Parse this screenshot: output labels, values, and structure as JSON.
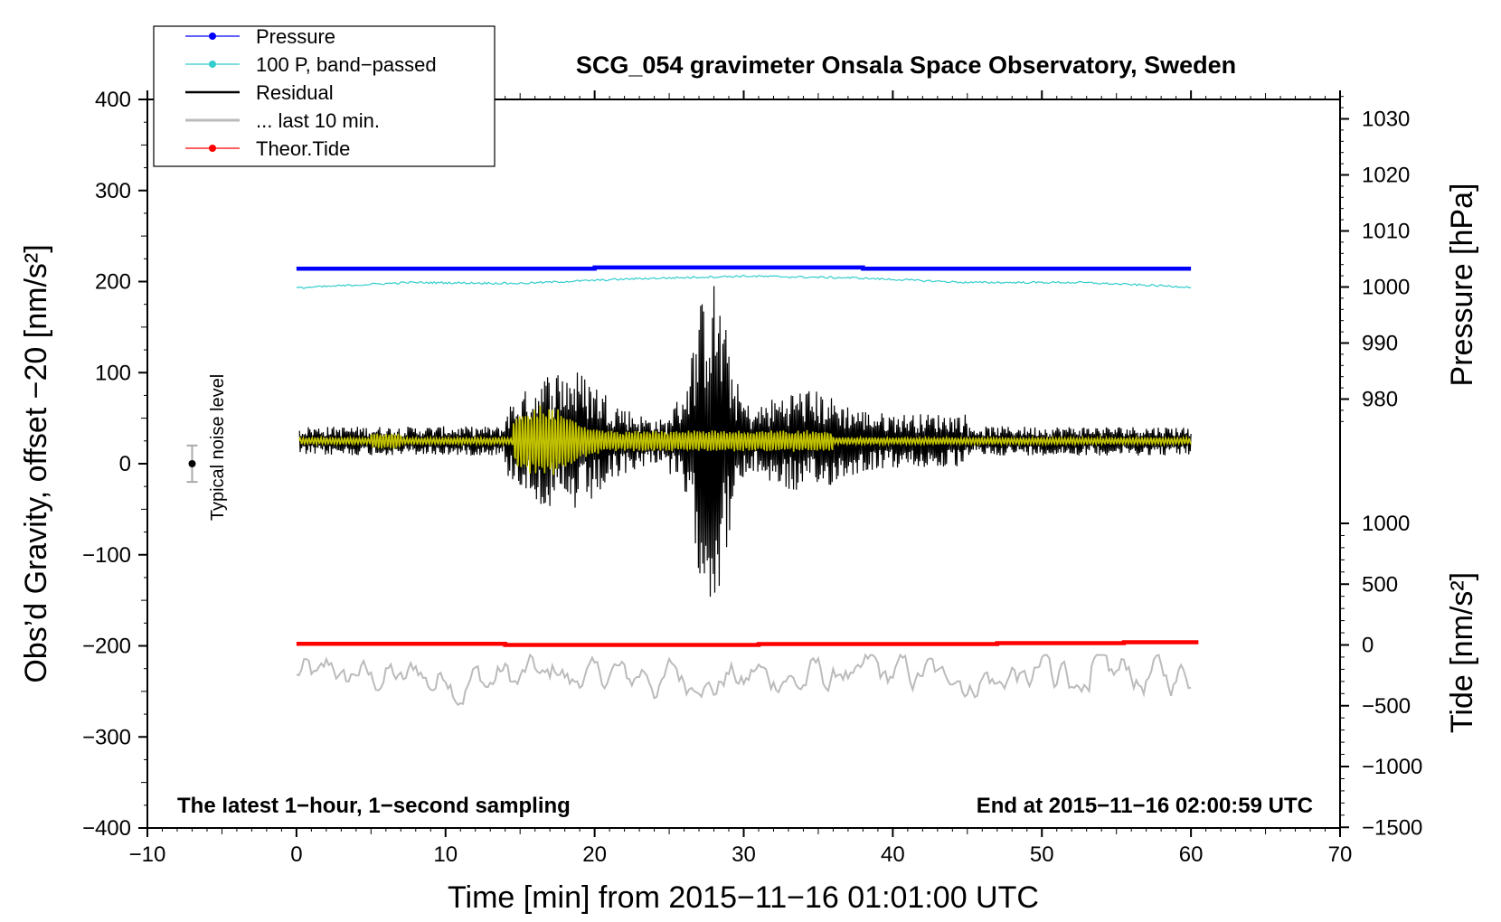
{
  "chart_data": {
    "type": "line",
    "title": "SCG_054 gravimeter Onsala Space Observatory, Sweden",
    "xlabel": "Time [min] from 2015−11−16 01:01:00 UTC",
    "ylabel_left": "Obs’d Gravity, offset −20 [nm/s²]",
    "ylabel_right_top": "Pressure [hPa]",
    "ylabel_right_bottom": "Tide [nm/s²]",
    "xlim": [
      -10,
      70
    ],
    "ylim": [
      -400,
      400
    ],
    "x_ticks": [
      -10,
      0,
      10,
      20,
      30,
      40,
      50,
      60,
      70
    ],
    "x_tick_labels": [
      "−10",
      "0",
      "10",
      "20",
      "30",
      "40",
      "50",
      "60",
      "70"
    ],
    "y_ticks": [
      400,
      300,
      200,
      100,
      0,
      -100,
      -200,
      -300,
      -400
    ],
    "y_tick_labels": [
      "400",
      "300",
      "200",
      "100",
      "0",
      "−100",
      "−200",
      "−300",
      "−400"
    ],
    "pressure_ticks": [
      1030,
      1020,
      1010,
      1000,
      990,
      980
    ],
    "pressure_tick_labels": [
      "1030",
      "1020",
      "1010",
      "1000",
      "990",
      "980"
    ],
    "tide_ticks": [
      1000,
      500,
      0,
      -500,
      -1000,
      -1500
    ],
    "tide_tick_labels": [
      "1000",
      "500",
      "0",
      "−500",
      "−1000",
      "−1500"
    ],
    "legend": {
      "placement": "top-left",
      "entries": [
        {
          "label": "Pressure",
          "color": "#0000ff",
          "marker": true
        },
        {
          "label": "100 P, band−passed",
          "color": "#33cccc",
          "marker": true
        },
        {
          "label": "Residual",
          "color": "#000000",
          "marker": false
        },
        {
          "label": "... last 10 min.",
          "color": "#bbbbbb",
          "marker": false
        },
        {
          "label": "Theor.Tide",
          "color": "#ff0000",
          "marker": true
        }
      ]
    },
    "series": [
      {
        "name": "Pressure",
        "color": "#0000ff",
        "x_range": [
          0,
          60
        ],
        "value_approx": 1003.4
      },
      {
        "name": "100 P, band-passed",
        "color": "#33cccc",
        "x_range": [
          0,
          60
        ],
        "y_approx": [
          193,
          199,
          198,
          203,
          206,
          204,
          199,
          199,
          194
        ]
      },
      {
        "name": "Residual",
        "color": "#000000",
        "x_range": [
          0,
          60
        ],
        "baseline": 25,
        "y_max": 195,
        "y_min": -146
      },
      {
        "name": "Residual band-passed (yellow)",
        "color": "#cccc00",
        "x_range": [
          0,
          60
        ],
        "baseline": 25
      },
      {
        "name": "Theor.Tide",
        "color": "#ff0000",
        "x_range": [
          0,
          60.5
        ],
        "value_approx": 0
      },
      {
        "name": "... last 10 min.",
        "color": "#bbbbbb",
        "x_range": [
          0,
          60
        ],
        "y_approx_range": [
          -265,
          -210
        ]
      }
    ],
    "noise_indicator": {
      "label": "Typical noise level",
      "x": -7,
      "y": 0,
      "err": 20
    },
    "annotation_left": "The latest 1−hour, 1−second sampling",
    "annotation_right": "End at 2015−11−16 02:00:59 UTC"
  }
}
